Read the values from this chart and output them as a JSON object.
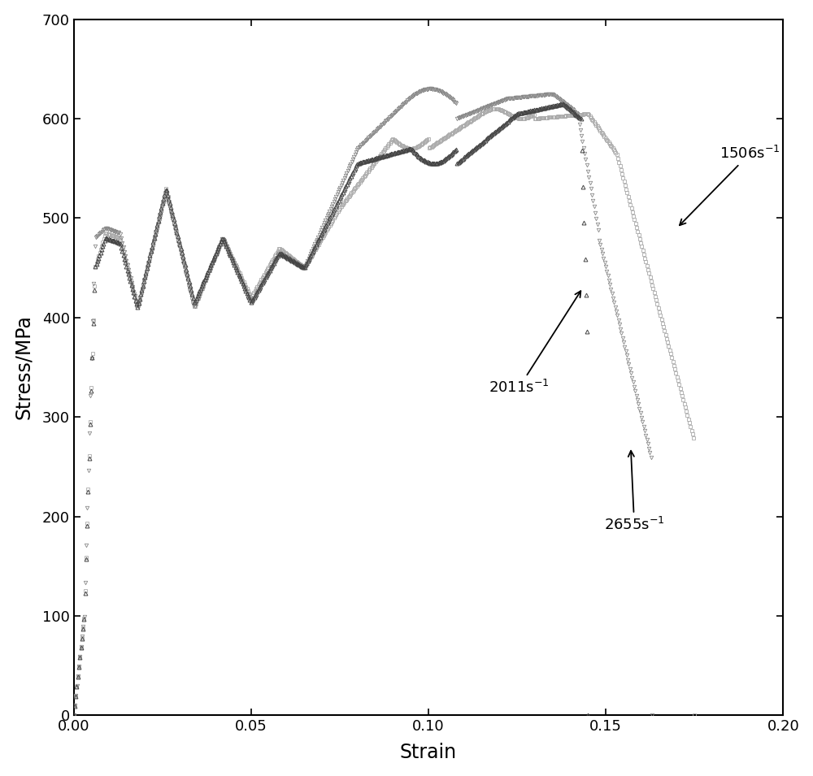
{
  "title": "",
  "xlabel": "Strain",
  "ylabel": "Stress/MPa",
  "xlim": [
    0.0,
    0.2
  ],
  "ylim": [
    0,
    700
  ],
  "xticks": [
    0.0,
    0.05,
    0.1,
    0.15,
    0.2
  ],
  "yticks": [
    0,
    100,
    200,
    300,
    400,
    500,
    600,
    700
  ],
  "curve_1506": {
    "label": "1506s^-1",
    "color": "#aaaaaa",
    "marker": "s",
    "markersize": 3.2,
    "x_end": 0.175
  },
  "curve_2011": {
    "label": "2011s^-1",
    "color": "#444444",
    "marker": "*",
    "markersize": 3.5,
    "x_end": 0.145
  },
  "curve_2655": {
    "label": "2655s^-1",
    "color": "#888888",
    "marker": "v",
    "markersize": 3.2,
    "x_end": 0.163
  },
  "figsize": [
    10.0,
    9.55
  ],
  "dpi": 100
}
